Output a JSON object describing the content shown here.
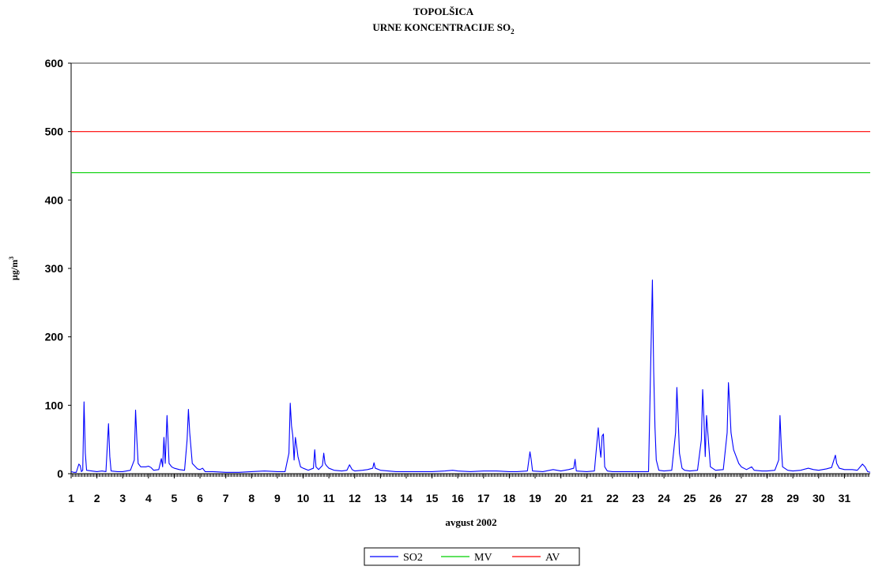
{
  "chart_data": {
    "type": "line",
    "title_line1": "TOPOLŠICA",
    "title_line2": "URNE KONCENTRACIJE  SO",
    "title_subscript": "2",
    "xlabel": "avgust 2002",
    "ylabel": "µg/m",
    "ylabel_superscript": "3",
    "ylim": [
      0,
      600
    ],
    "yticks": [
      "0",
      "100",
      "200",
      "300",
      "400",
      "500",
      "600"
    ],
    "xlim": [
      1,
      32
    ],
    "xticks": [
      "1",
      "2",
      "3",
      "4",
      "5",
      "6",
      "7",
      "8",
      "9",
      "10",
      "11",
      "12",
      "13",
      "14",
      "15",
      "16",
      "17",
      "18",
      "19",
      "20",
      "21",
      "22",
      "23",
      "24",
      "25",
      "26",
      "27",
      "28",
      "29",
      "30",
      "31"
    ],
    "legend_position": "bottom-center",
    "series": [
      {
        "name": "SO2",
        "color": "#0000ff",
        "points": [
          [
            1.0,
            3
          ],
          [
            1.1,
            2
          ],
          [
            1.2,
            2
          ],
          [
            1.3,
            14
          ],
          [
            1.35,
            12
          ],
          [
            1.4,
            3
          ],
          [
            1.45,
            5
          ],
          [
            1.5,
            105
          ],
          [
            1.55,
            30
          ],
          [
            1.6,
            5
          ],
          [
            1.8,
            4
          ],
          [
            2.0,
            3
          ],
          [
            2.2,
            4
          ],
          [
            2.35,
            3
          ],
          [
            2.45,
            73
          ],
          [
            2.5,
            25
          ],
          [
            2.55,
            4
          ],
          [
            2.8,
            3
          ],
          [
            3.0,
            3
          ],
          [
            3.3,
            5
          ],
          [
            3.45,
            20
          ],
          [
            3.5,
            93
          ],
          [
            3.55,
            50
          ],
          [
            3.6,
            15
          ],
          [
            3.7,
            10
          ],
          [
            3.9,
            10
          ],
          [
            4.0,
            11
          ],
          [
            4.1,
            9
          ],
          [
            4.2,
            5
          ],
          [
            4.4,
            6
          ],
          [
            4.5,
            22
          ],
          [
            4.55,
            10
          ],
          [
            4.6,
            53
          ],
          [
            4.65,
            15
          ],
          [
            4.72,
            85
          ],
          [
            4.8,
            15
          ],
          [
            4.9,
            10
          ],
          [
            5.0,
            8
          ],
          [
            5.2,
            6
          ],
          [
            5.4,
            5
          ],
          [
            5.5,
            50
          ],
          [
            5.55,
            94
          ],
          [
            5.6,
            60
          ],
          [
            5.7,
            15
          ],
          [
            5.9,
            7
          ],
          [
            6.0,
            6
          ],
          [
            6.1,
            8
          ],
          [
            6.2,
            3
          ],
          [
            6.5,
            3
          ],
          [
            7.0,
            2
          ],
          [
            7.5,
            2
          ],
          [
            8.0,
            3
          ],
          [
            8.5,
            4
          ],
          [
            9.0,
            3
          ],
          [
            9.3,
            3
          ],
          [
            9.45,
            30
          ],
          [
            9.5,
            103
          ],
          [
            9.55,
            70
          ],
          [
            9.6,
            55
          ],
          [
            9.65,
            20
          ],
          [
            9.7,
            53
          ],
          [
            9.75,
            40
          ],
          [
            9.8,
            25
          ],
          [
            9.9,
            10
          ],
          [
            10.0,
            8
          ],
          [
            10.2,
            5
          ],
          [
            10.4,
            8
          ],
          [
            10.45,
            35
          ],
          [
            10.5,
            10
          ],
          [
            10.6,
            6
          ],
          [
            10.75,
            12
          ],
          [
            10.8,
            30
          ],
          [
            10.85,
            15
          ],
          [
            10.9,
            12
          ],
          [
            11.0,
            8
          ],
          [
            11.2,
            5
          ],
          [
            11.5,
            4
          ],
          [
            11.7,
            5
          ],
          [
            11.8,
            13
          ],
          [
            11.9,
            6
          ],
          [
            12.0,
            4
          ],
          [
            12.3,
            5
          ],
          [
            12.5,
            6
          ],
          [
            12.7,
            8
          ],
          [
            12.75,
            16
          ],
          [
            12.8,
            8
          ],
          [
            13.0,
            5
          ],
          [
            13.3,
            4
          ],
          [
            13.6,
            3
          ],
          [
            14.0,
            3
          ],
          [
            14.5,
            3
          ],
          [
            15.0,
            3
          ],
          [
            15.5,
            4
          ],
          [
            15.8,
            5
          ],
          [
            16.0,
            4
          ],
          [
            16.5,
            3
          ],
          [
            17.0,
            4
          ],
          [
            17.5,
            4
          ],
          [
            18.0,
            3
          ],
          [
            18.3,
            3
          ],
          [
            18.7,
            4
          ],
          [
            18.8,
            32
          ],
          [
            18.85,
            20
          ],
          [
            18.9,
            4
          ],
          [
            19.3,
            3
          ],
          [
            19.7,
            6
          ],
          [
            20.0,
            4
          ],
          [
            20.3,
            6
          ],
          [
            20.5,
            8
          ],
          [
            20.55,
            21
          ],
          [
            20.6,
            4
          ],
          [
            21.0,
            3
          ],
          [
            21.3,
            4
          ],
          [
            21.45,
            67
          ],
          [
            21.5,
            40
          ],
          [
            21.55,
            24
          ],
          [
            21.6,
            55
          ],
          [
            21.65,
            58
          ],
          [
            21.7,
            10
          ],
          [
            21.8,
            4
          ],
          [
            22.0,
            3
          ],
          [
            22.5,
            3
          ],
          [
            23.0,
            3
          ],
          [
            23.4,
            3
          ],
          [
            23.55,
            283
          ],
          [
            23.6,
            150
          ],
          [
            23.65,
            68
          ],
          [
            23.7,
            20
          ],
          [
            23.8,
            5
          ],
          [
            24.0,
            4
          ],
          [
            24.3,
            5
          ],
          [
            24.45,
            60
          ],
          [
            24.5,
            126
          ],
          [
            24.55,
            80
          ],
          [
            24.6,
            30
          ],
          [
            24.7,
            8
          ],
          [
            24.8,
            5
          ],
          [
            25.0,
            4
          ],
          [
            25.3,
            5
          ],
          [
            25.45,
            50
          ],
          [
            25.5,
            123
          ],
          [
            25.55,
            80
          ],
          [
            25.6,
            25
          ],
          [
            25.65,
            85
          ],
          [
            25.7,
            60
          ],
          [
            25.8,
            10
          ],
          [
            26.0,
            5
          ],
          [
            26.3,
            6
          ],
          [
            26.45,
            60
          ],
          [
            26.5,
            133
          ],
          [
            26.55,
            100
          ],
          [
            26.6,
            60
          ],
          [
            26.7,
            35
          ],
          [
            26.8,
            25
          ],
          [
            26.9,
            15
          ],
          [
            27.0,
            10
          ],
          [
            27.2,
            6
          ],
          [
            27.4,
            10
          ],
          [
            27.5,
            5
          ],
          [
            27.8,
            4
          ],
          [
            28.0,
            4
          ],
          [
            28.3,
            5
          ],
          [
            28.45,
            20
          ],
          [
            28.5,
            85
          ],
          [
            28.55,
            40
          ],
          [
            28.6,
            10
          ],
          [
            28.8,
            5
          ],
          [
            29.0,
            4
          ],
          [
            29.3,
            5
          ],
          [
            29.6,
            8
          ],
          [
            29.8,
            6
          ],
          [
            30.0,
            5
          ],
          [
            30.3,
            7
          ],
          [
            30.5,
            9
          ],
          [
            30.65,
            27
          ],
          [
            30.7,
            15
          ],
          [
            30.8,
            8
          ],
          [
            31.0,
            6
          ],
          [
            31.3,
            6
          ],
          [
            31.5,
            5
          ],
          [
            31.7,
            14
          ],
          [
            31.8,
            10
          ],
          [
            31.9,
            3
          ],
          [
            32.0,
            2
          ]
        ]
      },
      {
        "name": "MV",
        "color": "#00d000",
        "constant": 440
      },
      {
        "name": "AV",
        "color": "#ff0000",
        "constant": 500
      }
    ]
  }
}
